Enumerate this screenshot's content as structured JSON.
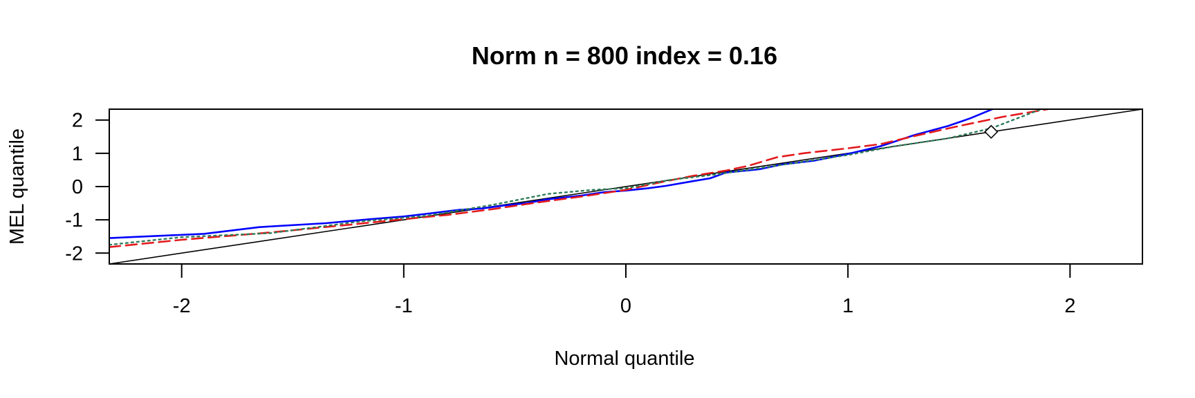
{
  "chart_data": {
    "type": "line",
    "title": "Norm n = 800 index = 0.16",
    "xlabel": "Normal quantile",
    "ylabel": "MEL quantile",
    "xlim": [
      -2.326,
      2.326
    ],
    "ylim": [
      -2.326,
      2.326
    ],
    "x_ticks": [
      -2,
      -1,
      0,
      1,
      2
    ],
    "x_tick_labels": [
      "-2",
      "-1",
      "0",
      "1",
      "2"
    ],
    "y_ticks": [
      -2,
      -1,
      0,
      1,
      2
    ],
    "y_tick_labels": [
      "-2",
      "-1",
      "0",
      "1",
      "2"
    ],
    "grid": false,
    "legend": "none",
    "reference_line": {
      "x": [
        -2.326,
        2.326
      ],
      "y": [
        -2.326,
        2.326
      ],
      "color": "#000000"
    },
    "marker": {
      "shape": "diamond",
      "x": 1.645,
      "y": 1.645
    },
    "series": [
      {
        "color": "#0000ff",
        "style": "solid",
        "x": [
          -2.326,
          -1.9,
          -1.65,
          -1.35,
          -1.15,
          -1.0,
          -0.9,
          -0.75,
          -0.65,
          -0.55,
          -0.45,
          -0.35,
          -0.2,
          -0.1,
          0.0,
          0.1,
          0.18,
          0.3,
          0.38,
          0.45,
          0.6,
          0.7,
          0.85,
          1.0,
          1.15,
          1.3,
          1.45,
          1.55,
          1.65
        ],
        "y": [
          -1.55,
          -1.42,
          -1.22,
          -1.1,
          -0.98,
          -0.9,
          -0.82,
          -0.7,
          -0.66,
          -0.57,
          -0.5,
          -0.38,
          -0.27,
          -0.17,
          -0.12,
          -0.05,
          0.02,
          0.16,
          0.25,
          0.42,
          0.52,
          0.66,
          0.78,
          0.98,
          1.22,
          1.55,
          1.82,
          2.05,
          2.326
        ]
      },
      {
        "color": "#e31a1c",
        "style": "dashed",
        "x": [
          -2.326,
          -2.0,
          -1.6,
          -1.25,
          -1.0,
          -0.8,
          -0.6,
          -0.4,
          -0.2,
          0.0,
          0.15,
          0.3,
          0.45,
          0.55,
          0.68,
          0.8,
          1.0,
          1.15,
          1.3,
          1.5,
          1.7,
          1.9
        ],
        "y": [
          -1.82,
          -1.6,
          -1.38,
          -1.15,
          -0.98,
          -0.85,
          -0.68,
          -0.48,
          -0.3,
          -0.1,
          0.12,
          0.32,
          0.48,
          0.62,
          0.88,
          1.0,
          1.15,
          1.28,
          1.52,
          1.82,
          2.1,
          2.326
        ]
      },
      {
        "color": "#2e7d5b",
        "style": "dotted",
        "x": [
          -2.326,
          -2.0,
          -1.6,
          -1.2,
          -0.9,
          -0.6,
          -0.35,
          -0.15,
          0.0,
          0.2,
          0.4,
          0.6,
          0.8,
          1.0,
          1.2,
          1.45,
          1.645,
          1.87
        ],
        "y": [
          -1.75,
          -1.52,
          -1.4,
          -1.05,
          -0.88,
          -0.55,
          -0.22,
          -0.1,
          -0.05,
          0.2,
          0.36,
          0.55,
          0.75,
          0.95,
          1.2,
          1.45,
          1.75,
          2.326
        ]
      }
    ]
  }
}
